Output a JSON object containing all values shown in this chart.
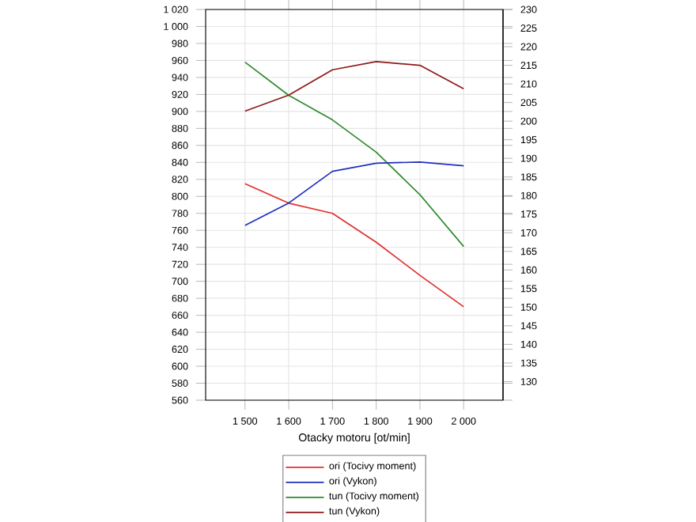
{
  "chart_data": {
    "type": "line",
    "xlabel": "Otacky motoru [ot/min]",
    "x": [
      1500,
      1600,
      1700,
      1800,
      1900,
      2000
    ],
    "xlim": [
      1410,
      2090
    ],
    "xticks": [
      {
        "value": 1500,
        "label": "1 500"
      },
      {
        "value": 1600,
        "label": "1 600"
      },
      {
        "value": 1700,
        "label": "1 700"
      },
      {
        "value": 1800,
        "label": "1 800"
      },
      {
        "value": 1900,
        "label": "1 900"
      },
      {
        "value": 2000,
        "label": "2 000"
      }
    ],
    "ylim": [
      560,
      1020
    ],
    "yticks": [
      560,
      580,
      600,
      620,
      640,
      660,
      680,
      700,
      720,
      740,
      760,
      780,
      800,
      820,
      840,
      860,
      880,
      900,
      920,
      940,
      960,
      980,
      {
        "value": 1000,
        "label": "1 000"
      },
      {
        "value": 1020,
        "label": "1 020"
      }
    ],
    "y2lim": [
      125,
      230
    ],
    "y2ticks": [
      130,
      135,
      140,
      145,
      150,
      155,
      160,
      165,
      170,
      175,
      180,
      185,
      190,
      195,
      200,
      205,
      210,
      215,
      220,
      225,
      230
    ],
    "grid": true,
    "legend": "bottom",
    "marker": "none",
    "line_style": "solid",
    "series": [
      {
        "name": "ori (Tocivy moment)",
        "color": "#e03030",
        "values": [
          815,
          792,
          780,
          746,
          707,
          670
        ]
      },
      {
        "name": "ori (Vykon)",
        "color": "#2030c0",
        "axis": "y2",
        "values": [
          172,
          178,
          186.5,
          188.7,
          189,
          188
        ]
      },
      {
        "name": "tun (Tocivy moment)",
        "color": "#2e8b2e",
        "values": [
          958,
          919,
          890,
          852,
          802,
          741
        ]
      },
      {
        "name": "tun (Vykon)",
        "color": "#8b1a1a",
        "axis": "y2",
        "values": [
          202.7,
          207,
          213.8,
          216,
          215,
          208.7
        ]
      }
    ]
  }
}
